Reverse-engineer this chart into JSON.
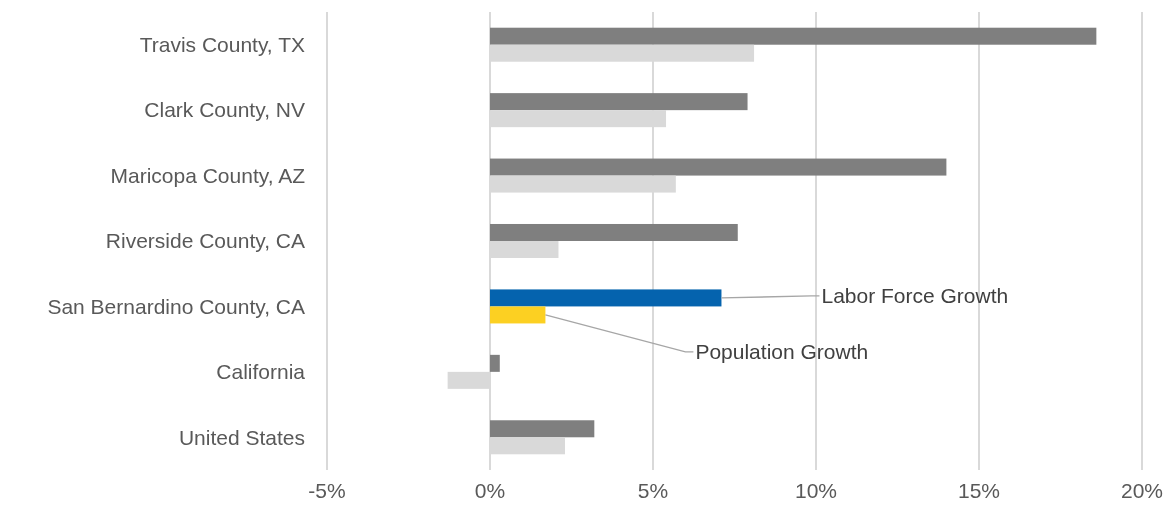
{
  "chart_data": {
    "type": "bar",
    "orientation": "horizontal",
    "categories": [
      "Travis County, TX",
      "Clark County, NV",
      "Maricopa County, AZ",
      "Riverside County, CA",
      "San Bernardino County, CA",
      "California",
      "United States"
    ],
    "series": [
      {
        "name": "Labor Force Growth",
        "color": "#7f7f7f",
        "colors": [
          "#7f7f7f",
          "#7f7f7f",
          "#7f7f7f",
          "#7f7f7f",
          "#0563ae",
          "#7f7f7f",
          "#7f7f7f"
        ],
        "values": [
          18.6,
          7.9,
          14.0,
          7.6,
          7.1,
          0.3,
          3.2
        ]
      },
      {
        "name": "Population Growth",
        "color": "#d9d9d9",
        "colors": [
          "#d9d9d9",
          "#d9d9d9",
          "#d9d9d9",
          "#d9d9d9",
          "#fcd022",
          "#d9d9d9",
          "#d9d9d9"
        ],
        "values": [
          8.1,
          5.4,
          5.7,
          2.1,
          1.7,
          -1.3,
          2.3
        ]
      }
    ],
    "xlim": [
      -5,
      20
    ],
    "xticks": [
      {
        "value": -5,
        "label": "-5%"
      },
      {
        "value": 0,
        "label": "0%"
      },
      {
        "value": 5,
        "label": "5%"
      },
      {
        "value": 10,
        "label": "10%"
      },
      {
        "value": 15,
        "label": "15%"
      },
      {
        "value": 20,
        "label": "20%"
      }
    ],
    "grid": "x"
  }
}
